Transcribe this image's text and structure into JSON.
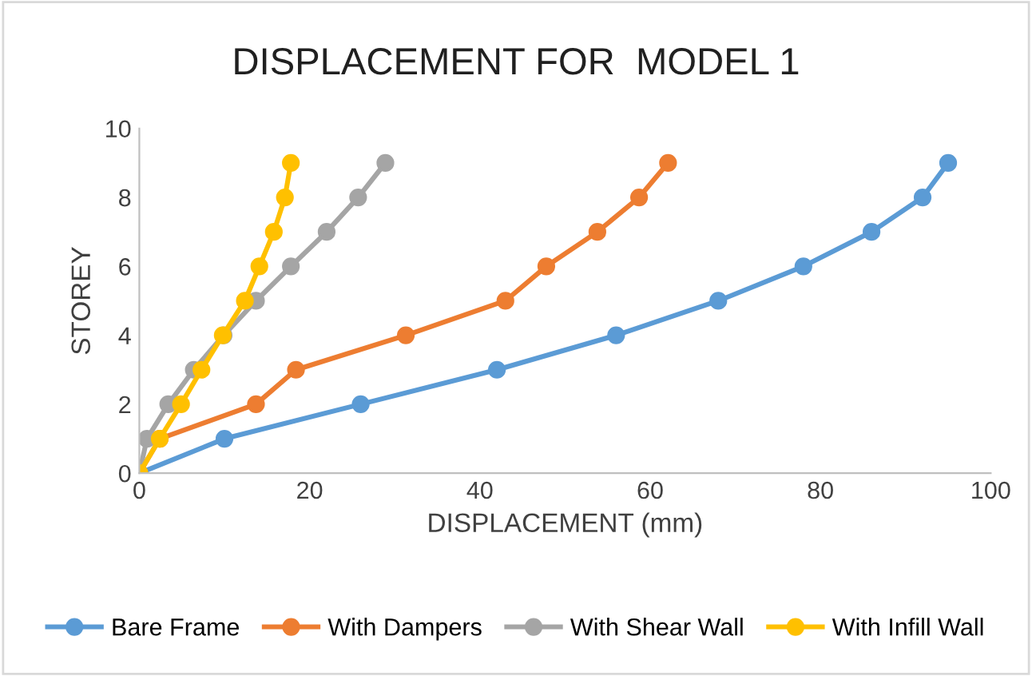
{
  "chart_data": {
    "type": "line",
    "title": "DISPLACEMENT FOR  MODEL 1",
    "xlabel": "DISPLACEMENT (mm)",
    "ylabel": "STOREY",
    "xlim": [
      0,
      100
    ],
    "xticks": [
      0,
      20,
      40,
      60,
      80,
      100
    ],
    "ylim": [
      0,
      10
    ],
    "yticks": [
      0,
      2,
      4,
      6,
      8,
      10
    ],
    "grid": false,
    "legend": "bottom",
    "marker": "circle",
    "line_style": "solid",
    "series": [
      {
        "name": "Bare Frame",
        "color": "#5b9bd5",
        "x": [
          0,
          10,
          26,
          42,
          56,
          68,
          78,
          86,
          92,
          95
        ],
        "values": [
          0,
          1,
          2,
          3,
          4,
          5,
          6,
          7,
          8,
          9
        ]
      },
      {
        "name": "With Dampers",
        "color": "#ed7d31",
        "x": [
          0,
          2.4,
          13.7,
          18.4,
          31.3,
          43,
          47.8,
          53.8,
          58.7,
          62.1
        ],
        "values": [
          0,
          1,
          2,
          3,
          4,
          5,
          6,
          7,
          8,
          9
        ]
      },
      {
        "name": "With Shear Wall",
        "color": "#a5a5a5",
        "x": [
          0,
          0.9,
          3.4,
          6.4,
          9.9,
          13.7,
          17.8,
          22,
          25.7,
          28.9
        ],
        "values": [
          0,
          1,
          2,
          3,
          4,
          5,
          6,
          7,
          8,
          9
        ]
      },
      {
        "name": "With Infill Wall",
        "color": "#ffc000",
        "x": [
          0,
          2.4,
          4.9,
          7.3,
          9.8,
          12.4,
          14.1,
          15.8,
          17.1,
          17.8
        ],
        "values": [
          0,
          1,
          2,
          3,
          4,
          5,
          6,
          7,
          8,
          9
        ]
      }
    ]
  }
}
